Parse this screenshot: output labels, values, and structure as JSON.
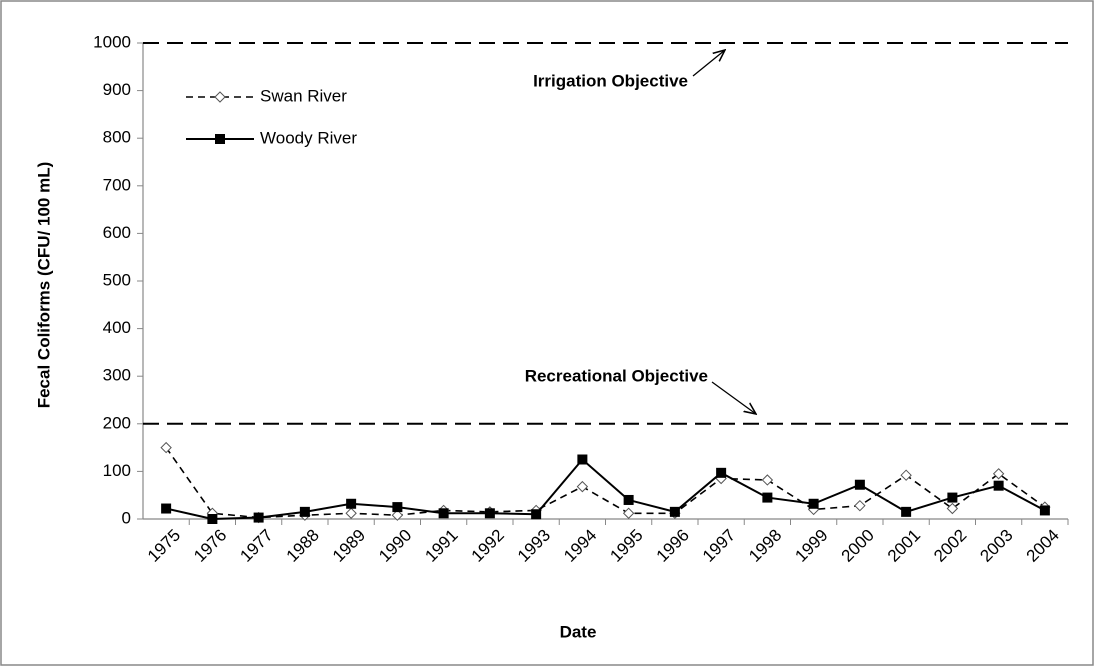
{
  "chart_data": {
    "type": "line",
    "xlabel": "Date",
    "ylabel": "Fecal Coliforms (CFU/ 100 mL)",
    "categories": [
      "1975",
      "1976",
      "1977",
      "1988",
      "1989",
      "1990",
      "1991",
      "1992",
      "1993",
      "1994",
      "1995",
      "1996",
      "1997",
      "1998",
      "1999",
      "2000",
      "2001",
      "2002",
      "2003",
      "2004"
    ],
    "series": [
      {
        "name": "Swan River",
        "color": "#000000",
        "values": [
          150,
          12,
          3,
          8,
          12,
          8,
          18,
          15,
          18,
          68,
          12,
          12,
          85,
          82,
          20,
          28,
          92,
          22,
          95,
          25
        ]
      },
      {
        "name": "Woody River",
        "color": "#000000",
        "values": [
          22,
          0,
          3,
          15,
          32,
          25,
          12,
          12,
          10,
          125,
          40,
          15,
          97,
          45,
          32,
          72,
          15,
          45,
          70,
          18
        ]
      }
    ],
    "reference_lines": [
      {
        "value": 1000,
        "label": "Irrigation Objective"
      },
      {
        "value": 200,
        "label": "Recreational Objective"
      }
    ],
    "ylim": [
      0,
      1000
    ],
    "yticks": [
      0,
      100,
      200,
      300,
      400,
      500,
      600,
      700,
      800,
      900,
      1000
    ],
    "legend": "upper left",
    "grid": false
  }
}
